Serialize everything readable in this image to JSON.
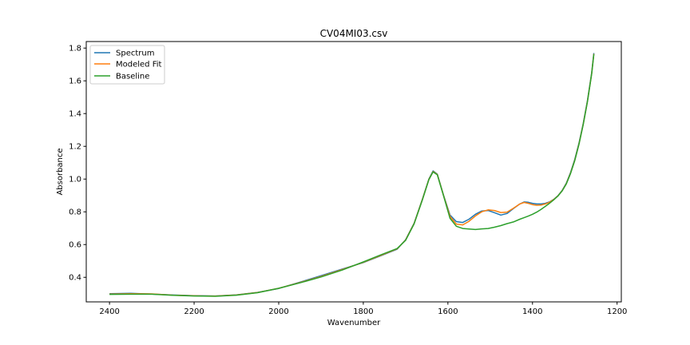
{
  "chart_data": {
    "type": "line",
    "title": "CV04MI03.csv",
    "xlabel": "Wavenumber",
    "ylabel": "Absorbance",
    "xlim": [
      2455,
      1190
    ],
    "ylim": [
      0.25,
      1.84
    ],
    "x_inverted": true,
    "xticks": [
      2400,
      2200,
      2000,
      1800,
      1600,
      1400,
      1200
    ],
    "yticks": [
      0.4,
      0.6,
      0.8,
      1.0,
      1.2,
      1.4,
      1.6,
      1.8
    ],
    "xtick_labels": [
      "2400",
      "2200",
      "2000",
      "1800",
      "1600",
      "1400",
      "1200"
    ],
    "ytick_labels": [
      "0.4",
      "0.6",
      "0.8",
      "1.0",
      "1.2",
      "1.4",
      "1.6",
      "1.8"
    ],
    "grid": false,
    "legend_position": "top-left",
    "series": [
      {
        "name": "Spectrum",
        "color": "#1f77b4",
        "x": [
          2400,
          2350,
          2300,
          2250,
          2200,
          2150,
          2100,
          2050,
          2000,
          1950,
          1900,
          1850,
          1800,
          1760,
          1720,
          1700,
          1680,
          1660,
          1645,
          1635,
          1625,
          1610,
          1595,
          1580,
          1565,
          1550,
          1535,
          1520,
          1505,
          1490,
          1475,
          1460,
          1445,
          1430,
          1420,
          1410,
          1400,
          1390,
          1380,
          1370,
          1360,
          1350,
          1340,
          1330,
          1320,
          1310,
          1300,
          1290,
          1280,
          1270,
          1260,
          1255
        ],
        "y": [
          0.3,
          0.302,
          0.298,
          0.292,
          0.288,
          0.286,
          0.293,
          0.308,
          0.332,
          0.37,
          0.41,
          0.45,
          0.49,
          0.53,
          0.572,
          0.63,
          0.73,
          0.88,
          1.0,
          1.05,
          1.03,
          0.9,
          0.78,
          0.74,
          0.735,
          0.755,
          0.785,
          0.805,
          0.808,
          0.795,
          0.78,
          0.79,
          0.82,
          0.848,
          0.86,
          0.858,
          0.852,
          0.848,
          0.848,
          0.852,
          0.86,
          0.876,
          0.898,
          0.93,
          0.975,
          1.04,
          1.12,
          1.22,
          1.34,
          1.48,
          1.65,
          1.77
        ]
      },
      {
        "name": "Modeled Fit",
        "color": "#ff7f0e",
        "x": [
          2400,
          2350,
          2300,
          2250,
          2200,
          2150,
          2100,
          2050,
          2000,
          1950,
          1900,
          1850,
          1800,
          1760,
          1720,
          1700,
          1680,
          1660,
          1645,
          1635,
          1625,
          1610,
          1595,
          1580,
          1565,
          1550,
          1535,
          1520,
          1505,
          1490,
          1475,
          1460,
          1445,
          1430,
          1420,
          1410,
          1400,
          1390,
          1380,
          1370,
          1360,
          1350,
          1340,
          1330,
          1320,
          1310,
          1300,
          1290,
          1280,
          1270,
          1260,
          1255
        ],
        "y": [
          0.298,
          0.3,
          0.299,
          0.291,
          0.287,
          0.285,
          0.292,
          0.307,
          0.333,
          0.368,
          0.405,
          0.447,
          0.492,
          0.533,
          0.574,
          0.628,
          0.728,
          0.878,
          0.998,
          1.046,
          1.028,
          0.898,
          0.772,
          0.725,
          0.72,
          0.742,
          0.775,
          0.8,
          0.812,
          0.808,
          0.796,
          0.798,
          0.822,
          0.848,
          0.857,
          0.852,
          0.844,
          0.84,
          0.841,
          0.848,
          0.858,
          0.875,
          0.897,
          0.928,
          0.972,
          1.036,
          1.115,
          1.215,
          1.335,
          1.475,
          1.645,
          1.765
        ]
      },
      {
        "name": "Baseline",
        "color": "#2ca02c",
        "x": [
          2400,
          2350,
          2300,
          2250,
          2200,
          2150,
          2100,
          2050,
          2000,
          1950,
          1900,
          1850,
          1800,
          1760,
          1720,
          1700,
          1680,
          1660,
          1645,
          1635,
          1625,
          1610,
          1595,
          1580,
          1565,
          1550,
          1535,
          1520,
          1505,
          1490,
          1475,
          1460,
          1445,
          1430,
          1420,
          1410,
          1400,
          1390,
          1380,
          1370,
          1360,
          1350,
          1340,
          1330,
          1320,
          1310,
          1300,
          1290,
          1280,
          1270,
          1260,
          1255
        ],
        "y": [
          0.296,
          0.297,
          0.297,
          0.29,
          0.286,
          0.284,
          0.291,
          0.306,
          0.333,
          0.366,
          0.402,
          0.444,
          0.494,
          0.536,
          0.576,
          0.626,
          0.726,
          0.876,
          0.996,
          1.044,
          1.026,
          0.896,
          0.76,
          0.712,
          0.698,
          0.695,
          0.692,
          0.696,
          0.698,
          0.706,
          0.716,
          0.728,
          0.738,
          0.755,
          0.764,
          0.774,
          0.785,
          0.798,
          0.815,
          0.833,
          0.852,
          0.873,
          0.896,
          0.927,
          0.97,
          1.034,
          1.113,
          1.213,
          1.333,
          1.473,
          1.643,
          1.763
        ]
      }
    ]
  }
}
